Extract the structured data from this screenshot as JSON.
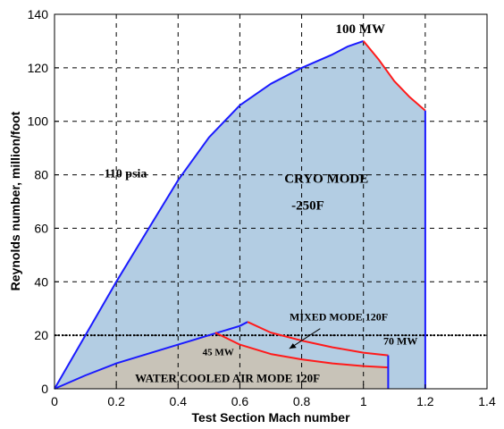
{
  "chart_data": {
    "type": "area",
    "title": "",
    "xlabel": "Test Section Mach number",
    "ylabel": "Reynolds number, million/foot",
    "xlim": [
      0,
      1.4
    ],
    "ylim": [
      0,
      140
    ],
    "x_ticks": [
      "0",
      "0.2",
      "0.4",
      "0.6",
      "0.8",
      "1",
      "1.2",
      "1.4"
    ],
    "y_ticks": [
      "0",
      "20",
      "40",
      "60",
      "80",
      "100",
      "120",
      "140"
    ],
    "grid": true,
    "colors": {
      "cryo_fill": "#b3cde3",
      "water_fill": "#c8c3b8",
      "blue_line": "#1a1aff",
      "red_line": "#ff1a1a",
      "reference_line": "#000000"
    },
    "series": [
      {
        "name": "",
        "color": "blue",
        "x": [
          0,
          0.1,
          0.2,
          0.3,
          0.4,
          0.5,
          0.6,
          0.7,
          0.8,
          0.9,
          0.95,
          1.0
        ],
        "y": [
          0,
          20,
          40,
          59,
          78,
          94,
          106,
          114,
          120,
          125,
          128,
          130
        ]
      },
      {
        "name": "",
        "color": "red",
        "x": [
          1.0,
          1.05,
          1.1,
          1.15,
          1.2
        ],
        "y": [
          130,
          123,
          115,
          109,
          104
        ]
      },
      {
        "name": "",
        "color": "blue",
        "x": [
          1.2,
          1.2
        ],
        "y": [
          104,
          0
        ]
      },
      {
        "name": "",
        "color": "blue",
        "x": [
          0,
          0.1,
          0.2,
          0.3,
          0.4,
          0.5,
          0.6,
          0.625
        ],
        "y": [
          0,
          5,
          9.5,
          13,
          16.5,
          20,
          23.5,
          25
        ]
      },
      {
        "name": "",
        "color": "red",
        "x": [
          0.625,
          0.7,
          0.8,
          0.9,
          1.0,
          1.08
        ],
        "y": [
          25,
          21,
          18,
          15.5,
          13.5,
          12.5
        ]
      },
      {
        "name": "",
        "color": "red",
        "x": [
          0.52,
          0.6,
          0.7,
          0.8,
          0.9,
          1.0,
          1.08
        ],
        "y": [
          21,
          16.5,
          13,
          11,
          9.5,
          8.5,
          8
        ]
      },
      {
        "name": "",
        "color": "blue",
        "x": [
          1.08,
          1.08
        ],
        "y": [
          12.5,
          0
        ]
      }
    ],
    "reference_line": {
      "y": 20,
      "style": "dotted"
    },
    "annotations": [
      {
        "text": "100 MW",
        "x": 0.99,
        "y": 133
      },
      {
        "text": "110 psia",
        "x": 0.23,
        "y": 79
      },
      {
        "text": "CRYO MODE",
        "x": 0.88,
        "y": 77
      },
      {
        "text": "-250F",
        "x": 0.82,
        "y": 67
      },
      {
        "text": "MIXED MODE 120F",
        "x": 0.92,
        "y": 25.5
      },
      {
        "text": "45 MW",
        "x": 0.53,
        "y": 12.5
      },
      {
        "text": "70 MW",
        "x": 1.12,
        "y": 16.5
      },
      {
        "text": "WATER COOLED AIR MODE 120F",
        "x": 0.56,
        "y": 2.5
      }
    ]
  }
}
